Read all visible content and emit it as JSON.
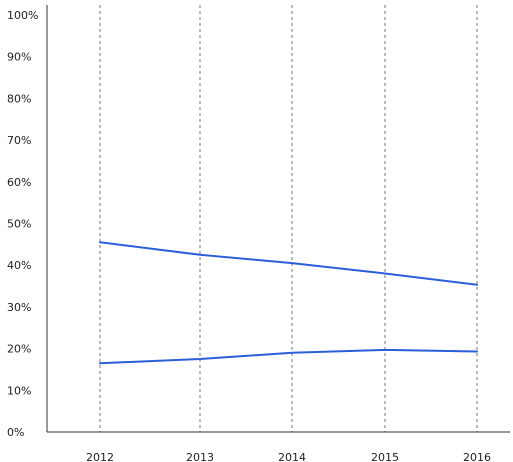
{
  "chart_data": {
    "type": "line",
    "title": "",
    "xlabel": "",
    "ylabel": "",
    "x": [
      "2012",
      "2013",
      "2014",
      "2015",
      "2016"
    ],
    "ylim": [
      0,
      100
    ],
    "y_ticks": [
      "0%",
      "10%",
      "20%",
      "30%",
      "40%",
      "50%",
      "60%",
      "70%",
      "80%",
      "90%",
      "100%"
    ],
    "grid": "vertical dashed",
    "legend": "none",
    "series": [
      {
        "values": [
          45.5,
          42.5,
          40.5,
          38.0,
          35.3
        ],
        "color": "#2b5fd9"
      },
      {
        "values": [
          16.5,
          17.5,
          19.0,
          19.7,
          19.3
        ],
        "color": "#2b5fd9"
      }
    ]
  }
}
